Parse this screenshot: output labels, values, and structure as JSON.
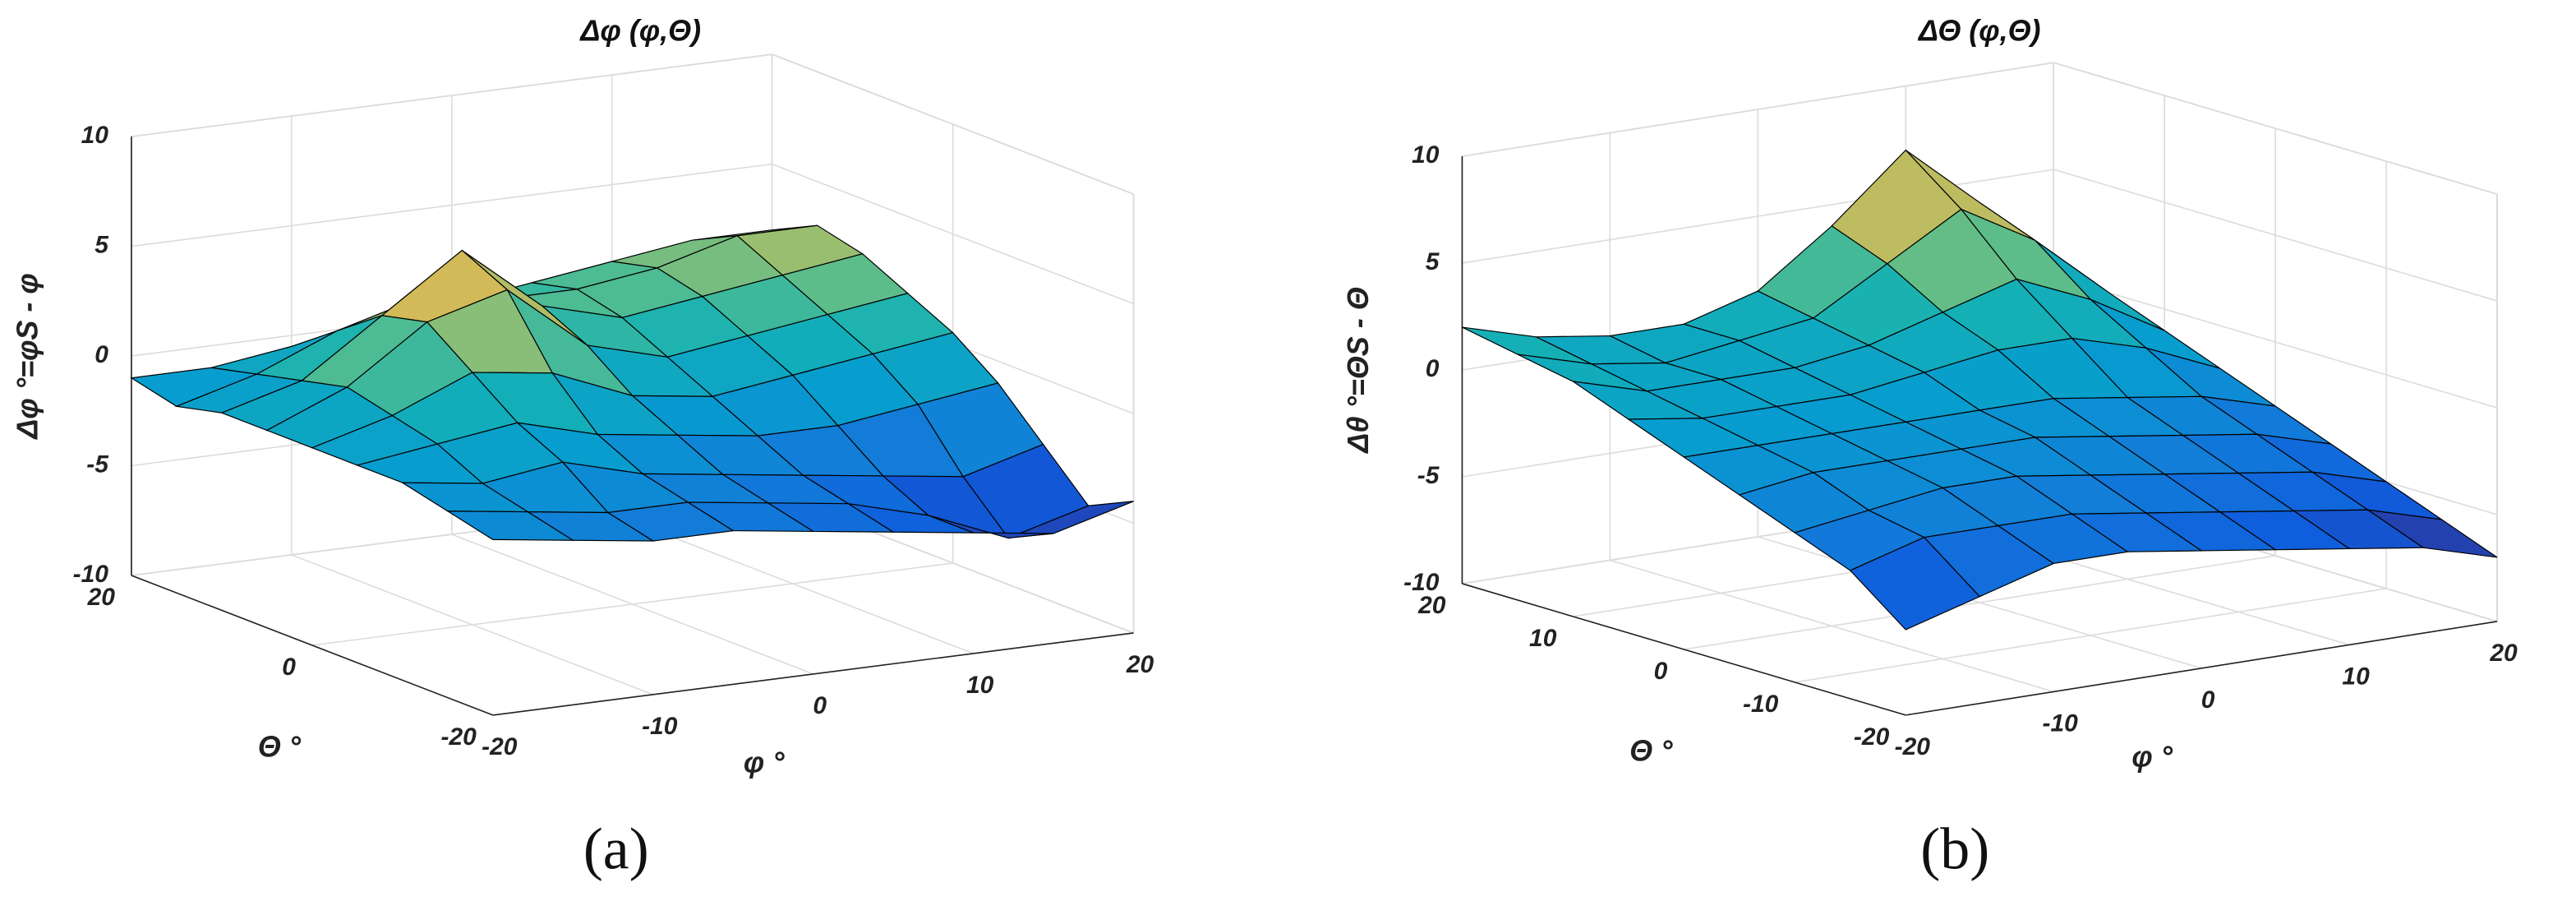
{
  "chart_data": [
    {
      "type": "surface",
      "title": "Δφ (φ,Θ)",
      "xlabel": "φ °",
      "ylabel": "Θ °",
      "zlabel": "Δφ °=φS - φ",
      "caption": "(a)",
      "x": [
        -20,
        -15,
        -10,
        -5,
        0,
        5,
        10,
        15,
        20
      ],
      "y": [
        -20,
        -15,
        -10,
        -5,
        0,
        5,
        10,
        15,
        20
      ],
      "z": [
        [
          -2,
          -2.5,
          -3,
          -3,
          -3.5,
          -4,
          -4.5,
          -5,
          -4
        ],
        [
          -1.5,
          -2,
          -2.5,
          -2.5,
          -3,
          -3.5,
          -4.5,
          -6,
          -5
        ],
        [
          -1,
          -1.5,
          -1,
          -2,
          -2.5,
          -3,
          -3.5,
          -4,
          -3
        ],
        [
          -1,
          -0.5,
          0,
          -1,
          -1.5,
          -2,
          -2,
          -1.5,
          -1
        ],
        [
          -1,
          0,
          1.5,
          1,
          -0.5,
          -1,
          -0.5,
          0,
          0.5
        ],
        [
          -1,
          0.5,
          3,
          4,
          1,
          0,
          0.5,
          1,
          1.5
        ],
        [
          -1,
          0,
          2.5,
          5,
          2,
          1,
          1.5,
          2,
          2.5
        ],
        [
          -1.5,
          -0.5,
          1,
          2,
          1.5,
          1.5,
          2,
          3,
          3
        ],
        [
          -1,
          -1,
          -0.5,
          0,
          0.5,
          1,
          1.5,
          2,
          2
        ]
      ],
      "xlim": [
        -20,
        20
      ],
      "ylim": [
        -20,
        20
      ],
      "zlim": [
        -10,
        10
      ],
      "xticks": [
        -20,
        -10,
        0,
        10,
        20
      ],
      "yticks": [
        -20,
        0,
        20
      ],
      "zticks": [
        -10,
        -5,
        0,
        5,
        10
      ],
      "grid": true,
      "colormap": "parula",
      "edgecolor": "#000000"
    },
    {
      "type": "surface",
      "title": "ΔΘ (φ,Θ)",
      "xlabel": "φ °",
      "ylabel": "Θ °",
      "zlabel": "Δθ °=ΘS - Θ",
      "caption": "(b)",
      "x": [
        -20,
        -15,
        -10,
        -5,
        0,
        5,
        10,
        15,
        20
      ],
      "y": [
        -20,
        -15,
        -10,
        -5,
        0,
        5,
        10,
        15,
        20
      ],
      "z": [
        [
          -6,
          -5,
          -4,
          -4,
          -4.5,
          -5,
          -5.5,
          -6,
          -7
        ],
        [
          -4,
          -3,
          -3,
          -3,
          -3.5,
          -4,
          -4.5,
          -5,
          -6
        ],
        [
          -3,
          -2.5,
          -2,
          -2,
          -2.5,
          -3,
          -3.5,
          -4,
          -5
        ],
        [
          -2,
          -1.5,
          -1.5,
          -1.5,
          -1.5,
          -2,
          -2.5,
          -3,
          -4
        ],
        [
          -1,
          -1,
          -1,
          -1,
          -1,
          -1,
          -1.5,
          -2,
          -3
        ],
        [
          0,
          -0.5,
          -0.5,
          -0.5,
          0,
          0.5,
          0.5,
          -0.5,
          -2
        ],
        [
          1,
          0,
          0,
          0,
          0.5,
          1.5,
          2.5,
          1,
          -1
        ],
        [
          1.5,
          0.5,
          0,
          0.5,
          1,
          3,
          5,
          3,
          0
        ],
        [
          2,
          1,
          0.5,
          0.5,
          1.5,
          4,
          7,
          4,
          1
        ]
      ],
      "xlim": [
        -20,
        20
      ],
      "ylim": [
        -20,
        20
      ],
      "zlim": [
        -10,
        10
      ],
      "xticks": [
        -20,
        -10,
        0,
        10,
        20
      ],
      "yticks": [
        -20,
        -10,
        0,
        10,
        20
      ],
      "zticks": [
        -10,
        -5,
        0,
        5,
        10
      ],
      "grid": true,
      "colormap": "parula",
      "edgecolor": "#000000"
    }
  ]
}
